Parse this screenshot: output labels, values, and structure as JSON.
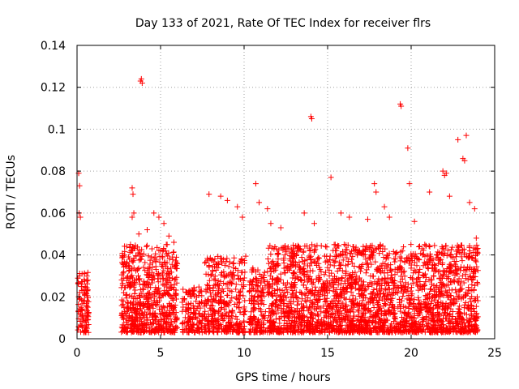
{
  "chart_data": {
    "type": "scatter",
    "title": "Day 133 of 2021, Rate Of TEC Index for receiver flrs",
    "xlabel": "GPS time / hours",
    "ylabel": "ROTI / TECUs",
    "xlim": [
      0,
      25
    ],
    "ylim": [
      0,
      0.14
    ],
    "xticks": [
      0,
      5,
      10,
      15,
      20,
      25
    ],
    "yticks": [
      0,
      0.02,
      0.04,
      0.06,
      0.08,
      0.1,
      0.12,
      0.14
    ],
    "xtick_labels": [
      "0",
      "5",
      "10",
      "15",
      "20",
      "25"
    ],
    "ytick_labels": [
      "0",
      "0.02",
      "0.04",
      "0.06",
      "0.08",
      "0.1",
      "0.12",
      "0.14"
    ],
    "grid": true,
    "marker": "+",
    "color": "#ff0000",
    "series": [
      {
        "name": "ROTI",
        "points": [
          [
            0.1,
            0.079
          ],
          [
            0.15,
            0.073
          ],
          [
            0.12,
            0.06
          ],
          [
            0.2,
            0.058
          ],
          [
            0.15,
            0.03
          ],
          [
            0.3,
            0.031
          ],
          [
            0.5,
            0.025
          ],
          [
            0.1,
            0.02
          ],
          [
            0.25,
            0.015
          ],
          [
            0.4,
            0.01
          ],
          [
            0.55,
            0.008
          ],
          [
            0.6,
            0.005
          ],
          [
            0.2,
            0.012
          ],
          [
            0.35,
            0.009
          ],
          [
            0.45,
            0.018
          ],
          [
            0.65,
            0.028
          ],
          [
            0.5,
            0.004
          ],
          [
            0.3,
            0.006
          ],
          [
            3.3,
            0.072
          ],
          [
            3.35,
            0.069
          ],
          [
            3.4,
            0.06
          ],
          [
            3.3,
            0.058
          ],
          [
            3.2,
            0.045
          ],
          [
            3.8,
            0.123
          ],
          [
            3.9,
            0.122
          ],
          [
            3.85,
            0.124
          ],
          [
            3.7,
            0.05
          ],
          [
            4.6,
            0.06
          ],
          [
            4.9,
            0.058
          ],
          [
            5.2,
            0.055
          ],
          [
            5.5,
            0.049
          ],
          [
            5.8,
            0.046
          ],
          [
            4.2,
            0.052
          ],
          [
            5.0,
            0.042
          ],
          [
            7.9,
            0.069
          ],
          [
            8.6,
            0.068
          ],
          [
            9.0,
            0.066
          ],
          [
            9.6,
            0.063
          ],
          [
            9.9,
            0.058
          ],
          [
            10.7,
            0.074
          ],
          [
            10.9,
            0.065
          ],
          [
            11.4,
            0.062
          ],
          [
            11.6,
            0.055
          ],
          [
            12.2,
            0.053
          ],
          [
            13.6,
            0.06
          ],
          [
            14.0,
            0.106
          ],
          [
            14.05,
            0.105
          ],
          [
            14.2,
            0.055
          ],
          [
            15.2,
            0.077
          ],
          [
            15.8,
            0.06
          ],
          [
            16.3,
            0.058
          ],
          [
            17.4,
            0.057
          ],
          [
            17.8,
            0.074
          ],
          [
            17.9,
            0.07
          ],
          [
            18.4,
            0.063
          ],
          [
            18.7,
            0.058
          ],
          [
            19.35,
            0.112
          ],
          [
            19.4,
            0.111
          ],
          [
            19.8,
            0.091
          ],
          [
            19.9,
            0.074
          ],
          [
            20.2,
            0.056
          ],
          [
            21.1,
            0.07
          ],
          [
            21.9,
            0.08
          ],
          [
            22.0,
            0.078
          ],
          [
            22.1,
            0.079
          ],
          [
            22.3,
            0.068
          ],
          [
            22.8,
            0.095
          ],
          [
            23.1,
            0.086
          ],
          [
            23.2,
            0.085
          ],
          [
            23.3,
            0.097
          ],
          [
            23.5,
            0.065
          ],
          [
            23.8,
            0.062
          ],
          [
            23.9,
            0.048
          ]
        ]
      }
    ],
    "clusters": [
      {
        "x0": 0.05,
        "x1": 0.7,
        "ymax": 0.032,
        "n": 90
      },
      {
        "x0": 2.65,
        "x1": 6.0,
        "ymax": 0.045,
        "n": 650
      },
      {
        "x0": 6.3,
        "x1": 7.5,
        "ymax": 0.025,
        "n": 140
      },
      {
        "x0": 7.6,
        "x1": 10.1,
        "ymax": 0.04,
        "n": 360
      },
      {
        "x0": 10.3,
        "x1": 11.3,
        "ymax": 0.035,
        "n": 150
      },
      {
        "x0": 11.4,
        "x1": 24.0,
        "ymax": 0.045,
        "n": 2400
      }
    ]
  }
}
